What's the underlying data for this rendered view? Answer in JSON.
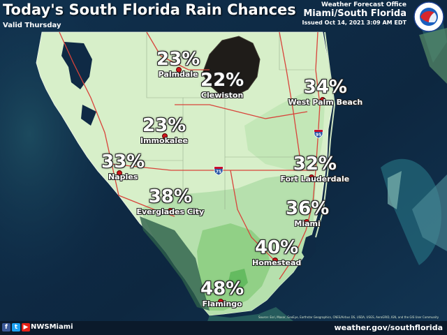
{
  "header": {
    "title": "Today's South Florida Rain Chances",
    "valid": "Valid Thursday",
    "office_line1": "Weather Forecast Office",
    "office_line2": "Miami/South Florida",
    "issued": "Issued Oct 14, 2021 3:09 AM EDT",
    "logo_text": "NATIONAL WEATHER SERVICE"
  },
  "locations": [
    {
      "name": "Palmdale",
      "chance": "23%"
    },
    {
      "name": "Clewiston",
      "chance": "22%"
    },
    {
      "name": "West Palm Beach",
      "chance": "34%"
    },
    {
      "name": "Immokalee",
      "chance": "23%"
    },
    {
      "name": "Naples",
      "chance": "33%"
    },
    {
      "name": "Fort Lauderdale",
      "chance": "32%"
    },
    {
      "name": "Everglades City",
      "chance": "38%"
    },
    {
      "name": "Miami",
      "chance": "36%"
    },
    {
      "name": "Homestead",
      "chance": "40%"
    },
    {
      "name": "Flamingo",
      "chance": "48%"
    }
  ],
  "highways": {
    "i75": "75",
    "i95": "95"
  },
  "credit": "Source: Esri, Maxar, GeoEye, Earthstar Geographics, CNES/Airbus DS, USDA, USGS, AeroGRID, IGN, and the GIS User Community",
  "footer": {
    "social_icons": [
      "facebook-icon",
      "twitter-icon",
      "youtube-icon"
    ],
    "handle": "NWSMiami",
    "website": "weather.gov/southflorida"
  },
  "colors": {
    "land_low": "#d7efc9",
    "land_mid": "#a9d99a",
    "land_high": "#7cc36e",
    "lake": "#1f1c19",
    "ocean": "#0f2a45",
    "road": "#d8433a",
    "dot": "#d0141c"
  }
}
